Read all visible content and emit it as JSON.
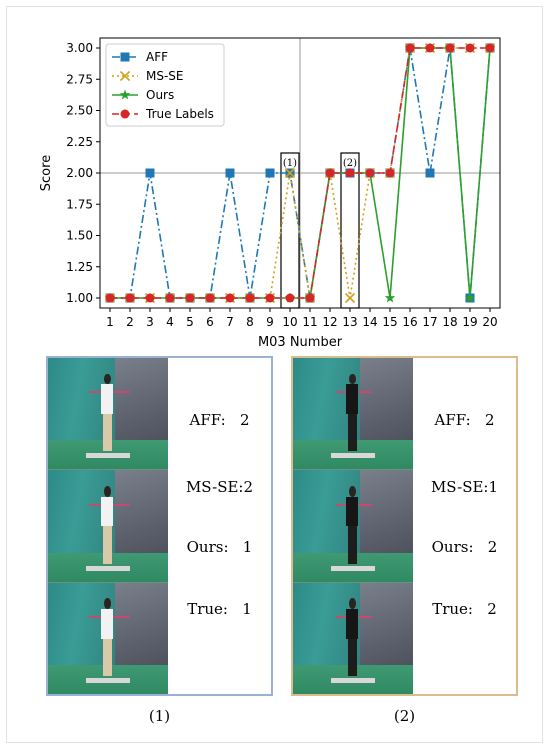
{
  "chart_data": {
    "type": "line",
    "title": "",
    "xlabel": "M03 Number",
    "ylabel": "Score",
    "x": [
      1,
      2,
      3,
      4,
      5,
      6,
      7,
      8,
      9,
      10,
      11,
      12,
      13,
      14,
      15,
      16,
      17,
      18,
      19,
      20
    ],
    "xticks": [
      "1",
      "2",
      "3",
      "4",
      "5",
      "6",
      "7",
      "8",
      "9",
      "10",
      "11",
      "12",
      "13",
      "14",
      "15",
      "16",
      "17",
      "18",
      "19",
      "20"
    ],
    "yticks": [
      "1.00",
      "1.25",
      "1.50",
      "1.75",
      "2.00",
      "2.25",
      "2.50",
      "2.75",
      "3.00"
    ],
    "ytick_values": [
      1.0,
      1.25,
      1.5,
      1.75,
      2.0,
      2.25,
      2.5,
      2.75,
      3.0
    ],
    "xlim": [
      0.5,
      20.5
    ],
    "ylim": [
      0.92,
      3.08
    ],
    "grid": false,
    "reference_lines": {
      "x": 10.5,
      "y": 2.0
    },
    "legend": "top-left",
    "series": [
      {
        "name": "AFF",
        "color": "#1f77b4",
        "style": "dashdot",
        "marker": "square",
        "values": [
          1,
          1,
          2,
          1,
          1,
          1,
          2,
          1,
          2,
          2,
          1,
          2,
          2,
          2,
          2,
          3,
          2,
          3,
          1,
          3
        ]
      },
      {
        "name": "MS-SE",
        "color": "#d4a017",
        "style": "dotted",
        "marker": "x",
        "values": [
          1,
          1,
          1,
          1,
          1,
          1,
          1,
          1,
          1,
          2,
          1,
          2,
          1,
          2,
          2,
          3,
          3,
          3,
          3,
          3
        ]
      },
      {
        "name": "Ours",
        "color": "#2ca02c",
        "style": "solid",
        "marker": "star",
        "values": [
          1,
          1,
          1,
          1,
          1,
          1,
          1,
          1,
          1,
          1,
          1,
          2,
          2,
          2,
          1,
          3,
          3,
          3,
          1,
          3
        ]
      },
      {
        "name": "True Labels",
        "color": "#d62728",
        "style": "dashed",
        "marker": "circle",
        "values": [
          1,
          1,
          1,
          1,
          1,
          1,
          1,
          1,
          1,
          1,
          1,
          2,
          2,
          2,
          2,
          3,
          3,
          3,
          3,
          3
        ]
      }
    ],
    "annotations": [
      {
        "label": "(1)",
        "x": 10,
        "y_range": [
          1.0,
          2.0
        ]
      },
      {
        "label": "(2)",
        "x": 13,
        "y_range": [
          1.0,
          2.0
        ]
      }
    ]
  },
  "panels": [
    {
      "caption": "(1)",
      "border_color": "#9bb1d1",
      "scores": [
        "AFF:   2",
        "MS-SE:2",
        "Ours:   1",
        "True:   1"
      ]
    },
    {
      "caption": "(2)",
      "border_color": "#d9bd8c",
      "scores": [
        "AFF:   2",
        "MS-SE:1",
        "Ours:   2",
        "True:   2"
      ]
    }
  ]
}
